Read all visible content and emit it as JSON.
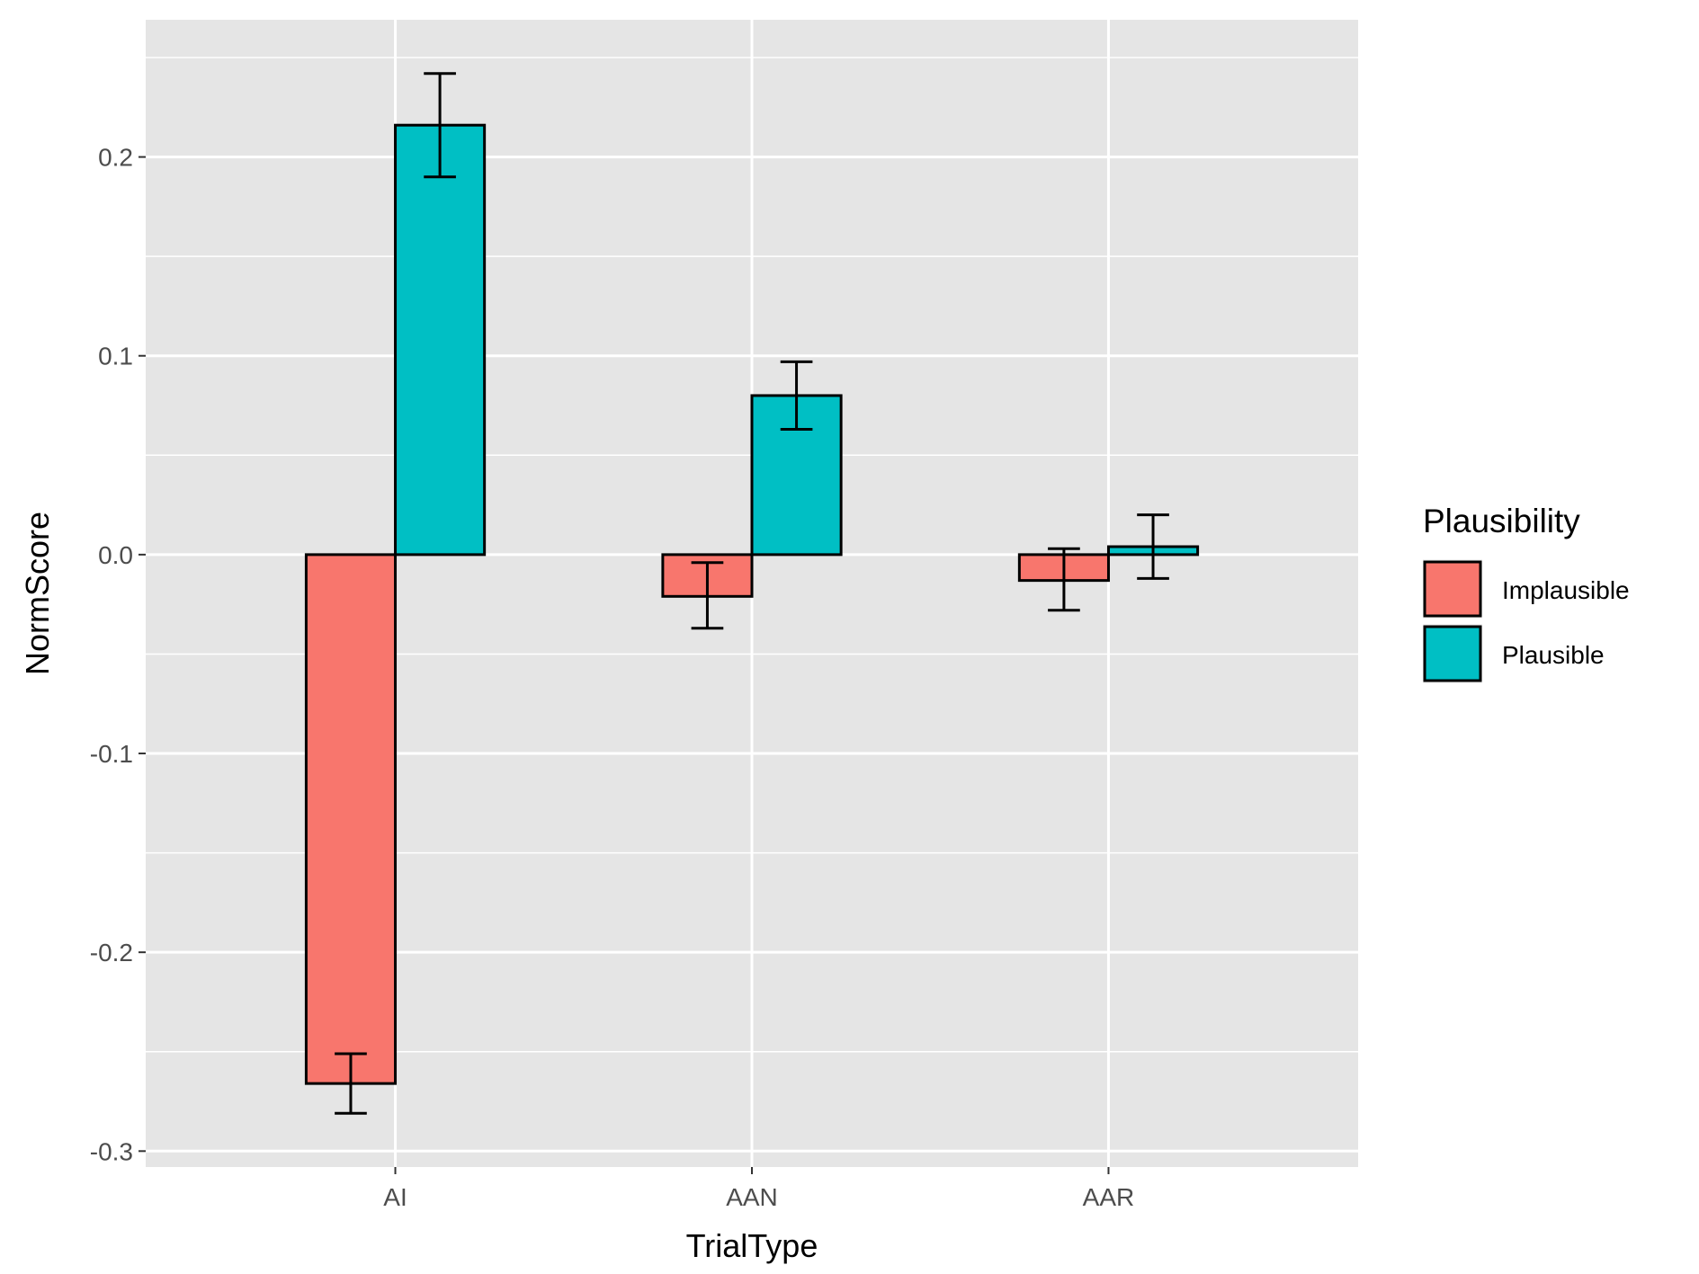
{
  "chart_data": {
    "type": "bar",
    "title": "",
    "xlabel": "TrialType",
    "ylabel": "NormScore",
    "categories": [
      "AI",
      "AAN",
      "AAR"
    ],
    "series": [
      {
        "name": "Implausible",
        "color": "#F8766D",
        "values": [
          -0.266,
          -0.021,
          -0.013
        ],
        "error_low": [
          -0.281,
          -0.037,
          -0.028
        ],
        "error_high": [
          -0.251,
          -0.004,
          0.003
        ]
      },
      {
        "name": "Plausible",
        "color": "#00BFC4",
        "values": [
          0.216,
          0.08,
          0.004
        ],
        "error_low": [
          0.19,
          0.063,
          -0.012
        ],
        "error_high": [
          0.242,
          0.097,
          0.02
        ]
      }
    ],
    "y_ticks": [
      "-0.3",
      "-0.2",
      "-0.1",
      "0.0",
      "0.1",
      "0.2"
    ],
    "y_tick_values": [
      -0.3,
      -0.2,
      -0.1,
      0.0,
      0.1,
      0.2
    ],
    "ylim": [
      -0.308,
      0.269
    ],
    "grid": true,
    "legend": {
      "title": "Plausibility",
      "position": "right"
    }
  }
}
